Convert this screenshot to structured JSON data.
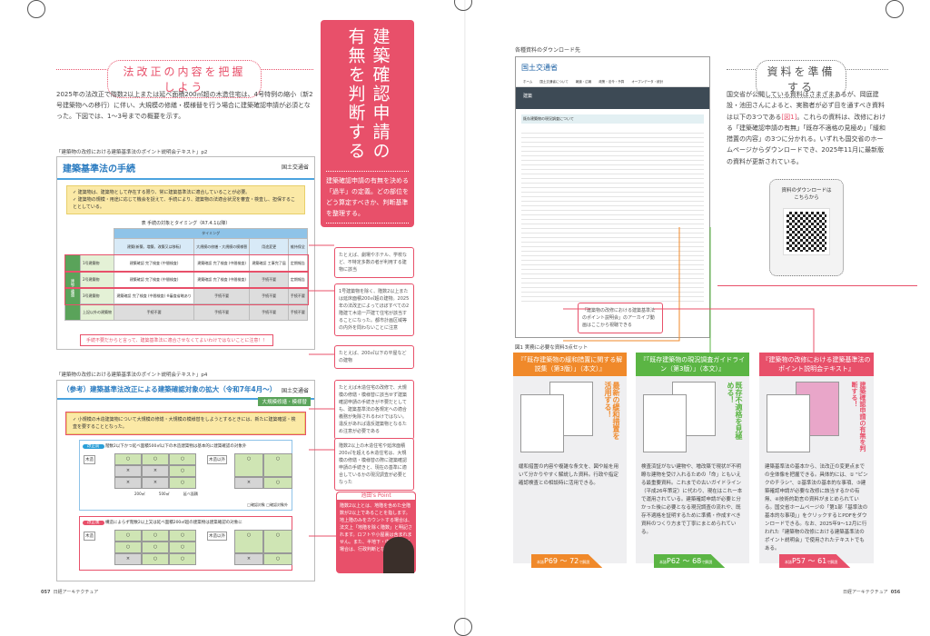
{
  "left": {
    "heading": "法改正の内容を把握しよう",
    "intro": "2025年の法改正で階数2以上または延べ面積200㎡超の木造住宅は、4号特例の縮小（新2号建築物への移行）に伴い、大規模の修繕・模様替を行う場合に建築確認申請が必須となった。下図では、1〜3号までの概要を示す。",
    "fig1": {
      "caption": "「建築物の改修における建築基準法のポイント説明会テキスト」p2",
      "title": "建築基準法の手続",
      "org": "国土交通省",
      "checks": [
        "建築物は、建築物として存在する限り、常に建築基準法に適合していることが必要。",
        "建築物の規模・用途に応じて機会を捉えて、手続により、建築物の法適合状況を審査・検査し、担保することとしている。"
      ],
      "table_title": "表 手続の対象とタイミング（R7.4.1以降）",
      "timing": "タイミング",
      "cols": [
        "建築(新築、増築、改築又は移転)",
        "大規模の修繕・大規模の模様替",
        "用途変更",
        "維持保全"
      ],
      "side": "建物の種類",
      "rows": [
        {
          "name": "1号建築物",
          "cells": [
            "建築確認 完了検査 (中間検査)",
            "建築確認 完了検査 (中間検査)",
            "建築確認 工事完了届",
            "定期報告"
          ]
        },
        {
          "name": "2号建築物",
          "cells": [
            "建築確認 完了検査 (中間検査)",
            "建築確認 完了検査 (中間検査)",
            "手続不要",
            "定期報告"
          ]
        },
        {
          "name": "3号建築物",
          "cells": [
            "建築確認 完了検査 (中間検査) ※審査省略あり",
            "手続不要",
            "手続不要",
            "手続不要"
          ]
        },
        {
          "name": "上記以外の建築物",
          "cells": [
            "手続不要",
            "手続不要",
            "手続不要",
            "手続不要"
          ]
        }
      ],
      "warning": "手続不要だからと言って、建築基準法に適合させなくてよいわけではないことに注意！！"
    },
    "fig2": {
      "caption": "「建築物の改修における建築基準法のポイント説明会テキスト」p4",
      "title": "（参考）建築基準法改正による建築確認対象の拡大（令和7年4月〜）",
      "org": "国土交通省",
      "badge": "大規模修繕・模様替",
      "check": "小規模の木造建築物について大規模の修繕・大規模の模様替をしようとするときには、新たに建築確認・検査を要することとなった。",
      "before_label": "改正前",
      "before_text": "階数2以下かつ延べ面積500㎡以下の木造建築物は基本的に建築確認の対象外",
      "after_label": "改正後",
      "after_text": "構造によらず階数2以上又は延べ面積200㎡超の建築物は建築確認の対象に",
      "wood": "木造",
      "nonwood": "木造以外",
      "axis": [
        "200㎡",
        "500㎡",
        "延べ面積"
      ],
      "legend": [
        "確認対象",
        "確認対象外"
      ]
    },
    "page_number": "057",
    "magazine": "日経アーキテクチュア"
  },
  "center": {
    "title": "建築確認申請の有無を判断する",
    "lead": "建築確認申請の有無を決める「過半」の定義。どの部位をどう算定すべきか、判断基準を整理する。",
    "annotations": [
      "たとえば、劇場やホテル、学校など、不特定多数の者が利用する建物に該当",
      "1号建築物を除く、階数2以上または延床面積200㎡超の建物。2025年の法改正によってほぼすべての2階建て木造一戸建て住宅が該当することになった。都市計画区域等の内外を問わないことに注意",
      "たとえば、200㎡以下の平屋などの建物",
      "たとえば木造住宅の改修で、大規模の修繕・模様替に該当せず建築確認申請の手続きが不要だとしても、建築基準法の各規定への適合義務が免除されるわけではない。違反があれば違反建築物となるため注意が必要である",
      "階数2以上の木造住宅や延床面積200㎡を超える木造住宅は、大規模の修繕・模様替の際に建築確認申請の手続きと、現在の基準に適合しているかの現況調査が必要となった"
    ],
    "point": {
      "title": "池田's Point",
      "text": "階数2以上とは、地階を含めた全階数が2以上であることを指します。地上階のみをカウントする場合は、法文上「地階を除く階数」と明記されます。ロフトや小屋裏は含まれません。また、半地下・中2階がある場合は、行政判断となります"
    }
  },
  "right": {
    "download_caption": "各種資料のダウンロード先",
    "site": {
      "org": "国土交通省",
      "nav": [
        "ホーム",
        "国土交通省について",
        "報道・広報",
        "政策・法令・予算",
        "オープンデータ・統計"
      ],
      "banner": "建築",
      "page_title": "既存建築物の現況調査について"
    },
    "callout": "「建築物の改修における建築基準法のポイント説明会」のアーカイブ動画はここから視聴できる",
    "heading": "資料を準備する",
    "intro_a": "国交省が公開している資料はさまざまあるが、岡庭建設・池田さんによると、実務者が必ず目を通すべき資料は以下の3つである",
    "fig_ref": "[図1]",
    "intro_b": "。これらの資料は、改修における「建築確認申請の有無」「既存不適格の見極め」「緩和措置の内容」の3つに分かれる。いずれも国交省のホームページからダウンロードでき、2025年11月に最新版の資料が更新されている。",
    "qr_label": "資料のダウンロードはこちらから",
    "fig_caption": "図1 実務に必要な資料3点セット",
    "cards": [
      {
        "title": "『「既存建築物の緩和措置に関する解説集（第3版）」（本文）』",
        "slogan": "最新の緩和措置を活用する！",
        "text": "緩和措置の内容や複雑な条文を、図や絵を用いて分かりやすく解説した資料。行政や指定確認検査との相談時に活用できる。",
        "ref": "P69 〜 72",
        "ref_pre": "本誌",
        "ref_post": "で解説",
        "color": "#f0892a"
      },
      {
        "title": "『「既存建築物の現況調査ガイドライン（第3版）」（本文）』",
        "slogan": "既存不適格を見極める！",
        "text": "検査済証がない建物や、増改築で現状が不明瞭な建物を受け入れるための「命」ともいえる最重要資料。これまでの古いガイドライン（平成26年策定）に代わり、現在はこれ一本で運用されている。建築確認申請が必要と分かった後に必要となる現況調査の流れや、既存不適格を証明するために準備・作成すべき資料のつくり方まで丁寧にまとめられている。",
        "ref": "P62 〜 68",
        "ref_pre": "本誌",
        "ref_post": "で解説",
        "color": "#5bb544"
      },
      {
        "title": "『建築物の改修における建築基準法のポイント説明会テキスト』",
        "slogan": "建築確認申請の有無を判断する！",
        "text": "建築基準法の基本から、法改正の変更点までの全体像を把握できる。具体的には、① \"ピンクのチラシ\"、②基準法の基本的な事項、③建築確認申請が必要な改修に該当するかの有無、④技術的助言の資料がまとめられている。国交省ホームページの「第1部「基準法の基本的な事項」」をクリックするとPDFをダウンロードできる。なお、2025年9〜12月に行われた「建築物の改修における建築基準法のポイント説明会」で使用されたテキストでもある。",
        "ref": "P57 〜 61",
        "ref_pre": "本誌",
        "ref_post": "で解説",
        "color": "#e8506a"
      }
    ],
    "page_number": "056",
    "magazine": "日経アーキテクチュア"
  },
  "colors": {
    "accent": "#e8506a",
    "orange": "#f0892a",
    "green": "#5bb544",
    "blue": "#2a7bc0"
  }
}
